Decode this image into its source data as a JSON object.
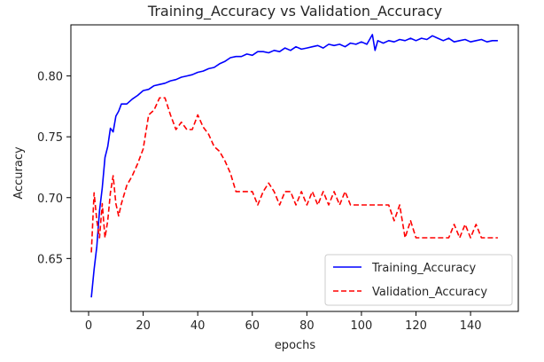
{
  "chart_data": {
    "type": "line",
    "title": "Training_Accuracy vs Validation_Accuracy",
    "xlabel": "epochs",
    "ylabel": "Accuracy",
    "xlim": [
      -6.5,
      157.5
    ],
    "ylim": [
      0.6065,
      0.842
    ],
    "xticks": [
      0,
      20,
      40,
      60,
      80,
      100,
      120,
      140
    ],
    "yticks": [
      0.65,
      0.7,
      0.75,
      0.8
    ],
    "ytick_labels": [
      "0.65",
      "0.70",
      "0.75",
      "0.80"
    ],
    "grid": false,
    "legend": "lower-right",
    "series": [
      {
        "name": "Training_Accuracy",
        "color": "#0000ff",
        "dash": "solid",
        "x": [
          1,
          2,
          3,
          4,
          5,
          6,
          7,
          8,
          9,
          10,
          11,
          12,
          14,
          16,
          18,
          20,
          22,
          24,
          26,
          28,
          30,
          32,
          34,
          36,
          38,
          40,
          42,
          44,
          46,
          48,
          50,
          52,
          54,
          56,
          58,
          60,
          62,
          64,
          66,
          68,
          70,
          72,
          74,
          76,
          78,
          80,
          82,
          84,
          86,
          88,
          90,
          92,
          94,
          96,
          98,
          100,
          102,
          104,
          105,
          106,
          108,
          110,
          112,
          114,
          116,
          118,
          120,
          122,
          124,
          126,
          128,
          130,
          132,
          134,
          136,
          138,
          140,
          142,
          144,
          146,
          148,
          150
        ],
        "values": [
          0.618,
          0.641,
          0.66,
          0.689,
          0.708,
          0.733,
          0.742,
          0.757,
          0.754,
          0.767,
          0.771,
          0.777,
          0.777,
          0.781,
          0.784,
          0.788,
          0.789,
          0.792,
          0.793,
          0.794,
          0.796,
          0.797,
          0.799,
          0.8,
          0.801,
          0.803,
          0.804,
          0.806,
          0.807,
          0.81,
          0.812,
          0.815,
          0.816,
          0.816,
          0.818,
          0.817,
          0.82,
          0.82,
          0.819,
          0.821,
          0.82,
          0.823,
          0.821,
          0.824,
          0.822,
          0.823,
          0.824,
          0.825,
          0.823,
          0.826,
          0.825,
          0.826,
          0.824,
          0.827,
          0.826,
          0.828,
          0.826,
          0.834,
          0.821,
          0.829,
          0.827,
          0.829,
          0.828,
          0.83,
          0.829,
          0.831,
          0.829,
          0.831,
          0.83,
          0.833,
          0.831,
          0.829,
          0.831,
          0.828,
          0.829,
          0.83,
          0.828,
          0.829,
          0.83,
          0.828,
          0.829,
          0.829
        ]
      },
      {
        "name": "Validation_Accuracy",
        "color": "#ff0000",
        "dash": "dashed",
        "x": [
          1,
          2,
          3,
          4,
          5,
          6,
          7,
          8,
          9,
          10,
          11,
          12,
          14,
          16,
          18,
          20,
          22,
          24,
          26,
          28,
          30,
          32,
          34,
          36,
          38,
          40,
          42,
          44,
          46,
          48,
          50,
          52,
          54,
          56,
          58,
          60,
          62,
          64,
          66,
          68,
          70,
          72,
          74,
          76,
          78,
          80,
          82,
          84,
          86,
          88,
          90,
          92,
          94,
          96,
          98,
          100,
          102,
          104,
          106,
          108,
          110,
          112,
          114,
          116,
          118,
          120,
          122,
          124,
          126,
          128,
          130,
          132,
          134,
          136,
          138,
          140,
          142,
          144,
          146,
          148,
          150
        ],
        "values": [
          0.655,
          0.704,
          0.681,
          0.667,
          0.695,
          0.667,
          0.681,
          0.704,
          0.718,
          0.695,
          0.685,
          0.695,
          0.71,
          0.718,
          0.728,
          0.74,
          0.768,
          0.772,
          0.782,
          0.782,
          0.768,
          0.756,
          0.762,
          0.756,
          0.756,
          0.768,
          0.758,
          0.752,
          0.742,
          0.738,
          0.73,
          0.72,
          0.705,
          0.705,
          0.705,
          0.705,
          0.694,
          0.705,
          0.712,
          0.705,
          0.694,
          0.705,
          0.705,
          0.694,
          0.705,
          0.694,
          0.705,
          0.694,
          0.705,
          0.694,
          0.705,
          0.694,
          0.705,
          0.694,
          0.694,
          0.694,
          0.694,
          0.694,
          0.694,
          0.694,
          0.694,
          0.681,
          0.694,
          0.667,
          0.681,
          0.667,
          0.667,
          0.667,
          0.667,
          0.667,
          0.667,
          0.667,
          0.678,
          0.667,
          0.678,
          0.667,
          0.678,
          0.667,
          0.667,
          0.667,
          0.667
        ]
      }
    ]
  }
}
